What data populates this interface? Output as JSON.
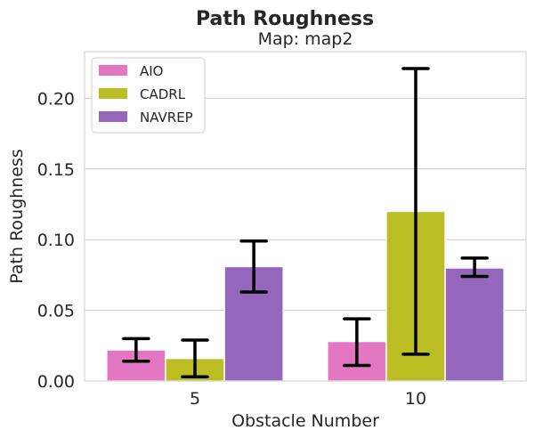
{
  "chart_data": {
    "type": "bar",
    "title": "Path Roughness",
    "subtitle": "Map: map2",
    "xlabel": "Obstacle Number",
    "ylabel": "Path Roughness",
    "categories": [
      "5",
      "10"
    ],
    "ylim": [
      0,
      0.233
    ],
    "yticks": [
      0.0,
      0.05,
      0.1,
      0.15,
      0.2
    ],
    "ytick_labels": [
      "0.00",
      "0.05",
      "0.10",
      "0.15",
      "0.20"
    ],
    "grid": true,
    "legend_position": "top-left",
    "series": [
      {
        "name": "AIO",
        "color": "#e377c2",
        "values": [
          0.022,
          0.028
        ],
        "err_low": [
          0.014,
          0.011
        ],
        "err_high": [
          0.03,
          0.044
        ]
      },
      {
        "name": "CADRL",
        "color": "#bcbd22",
        "values": [
          0.016,
          0.12
        ],
        "err_low": [
          0.003,
          0.019
        ],
        "err_high": [
          0.029,
          0.221
        ]
      },
      {
        "name": "NAVREP",
        "color": "#9467bd",
        "values": [
          0.081,
          0.08
        ],
        "err_low": [
          0.063,
          0.074
        ],
        "err_high": [
          0.099,
          0.087
        ]
      }
    ]
  }
}
